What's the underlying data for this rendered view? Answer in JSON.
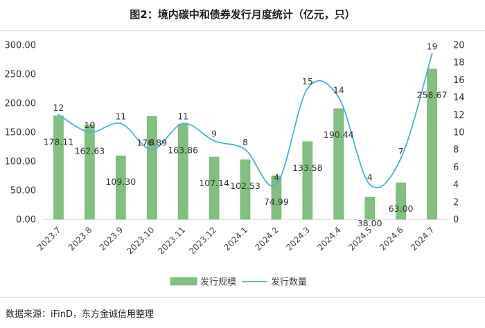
{
  "title": "图2：境内碳中和债券发行月度统计（亿元，只）",
  "source": "数据来源：iFinD，东方金诚信用整理",
  "colors": {
    "bar": "#82c07f",
    "bar_stroke": "#6aad67",
    "line": "#47b3d8"
  },
  "chart_data": {
    "type": "bar",
    "categories": [
      "2023.7",
      "2023.8",
      "2023.9",
      "2023.10",
      "2023.11",
      "2023.12",
      "2024.1",
      "2024.2",
      "2024.3",
      "2024.4",
      "2024.5",
      "2024.6",
      "2024.7"
    ],
    "series": [
      {
        "name": "发行规模",
        "type": "bar",
        "axis": "left",
        "values": [
          178.11,
          162.63,
          109.3,
          176.89,
          163.86,
          107.14,
          102.53,
          74.99,
          133.58,
          190.44,
          38.0,
          63.0,
          258.67
        ],
        "labels": [
          "178.11",
          "162.63",
          "109.30",
          "176.89",
          "163.86",
          "107.14",
          "102.53",
          "74.99",
          "133.58",
          "190.44",
          "38.00",
          "63.00",
          "258.67"
        ]
      },
      {
        "name": "发行数量",
        "type": "line",
        "axis": "right",
        "smooth": true,
        "values": [
          12,
          10,
          11,
          8,
          11,
          9,
          8,
          4,
          15,
          14,
          4,
          7,
          19
        ],
        "labels": [
          "12",
          "10",
          "11",
          "8",
          "11",
          "9",
          "8",
          "4",
          "15",
          "14",
          "4",
          "7",
          "19"
        ]
      }
    ],
    "y_left": {
      "min": 0,
      "max": 300,
      "step": 50,
      "tick_labels": [
        "0.00",
        "50.00",
        "100.00",
        "150.00",
        "200.00",
        "250.00",
        "300.00"
      ]
    },
    "y_right": {
      "min": 0,
      "max": 20,
      "step": 2,
      "tick_labels": [
        "0",
        "2",
        "4",
        "6",
        "8",
        "10",
        "12",
        "14",
        "16",
        "18",
        "20"
      ]
    },
    "grid": false,
    "legend": "bottom"
  }
}
